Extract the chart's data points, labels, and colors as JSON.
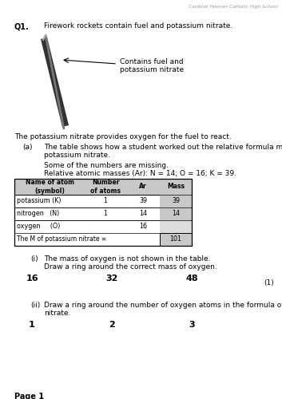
{
  "school_name": "Cardinal Heenan Catholic High School",
  "q_label": "Q1.",
  "q_text": "Firework rockets contain fuel and potassium nitrate.",
  "label_arrow": "Contains fuel and\npotassium nitrate",
  "body_text1": "The potassium nitrate provides oxygen for the fuel to react.",
  "part_a_label": "(a)",
  "part_a_text": "The table shows how a student worked out the relative formula mass (M) of\npotassium nitrate.",
  "missing_text": "Some of the numbers are missing.",
  "relative_text": "Relative atomic masses (Ar): N = 14; O = 16; K = 39.",
  "table_headers": [
    "Name of atom\n(symbol)",
    "Number\nof atoms",
    "Ar",
    "Mass"
  ],
  "table_rows": [
    [
      "potassium (K)",
      "1",
      "39",
      "39"
    ],
    [
      "nitrogen   (N)",
      "1",
      "14",
      "14"
    ],
    [
      "oxygen     (O)",
      "",
      "16",
      ""
    ]
  ],
  "table_footer": "The M of potassium nitrate =",
  "table_footer_value": "101",
  "part_i_label": "(i)",
  "part_i_text": "The mass of oxygen is not shown in the table.",
  "part_i_text2": "Draw a ring around the correct mass of oxygen.",
  "choices_i": [
    "16",
    "32",
    "48"
  ],
  "mark_i": "(1)",
  "part_ii_label": "(ii)",
  "part_ii_text": "Draw a ring around the number of oxygen atoms in the formula of potassium\nnitrate.",
  "choices_ii": [
    "1",
    "2",
    "3"
  ],
  "page_label": "Page 1",
  "bg_color": "#ffffff",
  "text_color": "#000000",
  "table_header_bg": "#c8c8c8",
  "table_mass_bg": "#c8c8c8",
  "table_border": "#000000"
}
